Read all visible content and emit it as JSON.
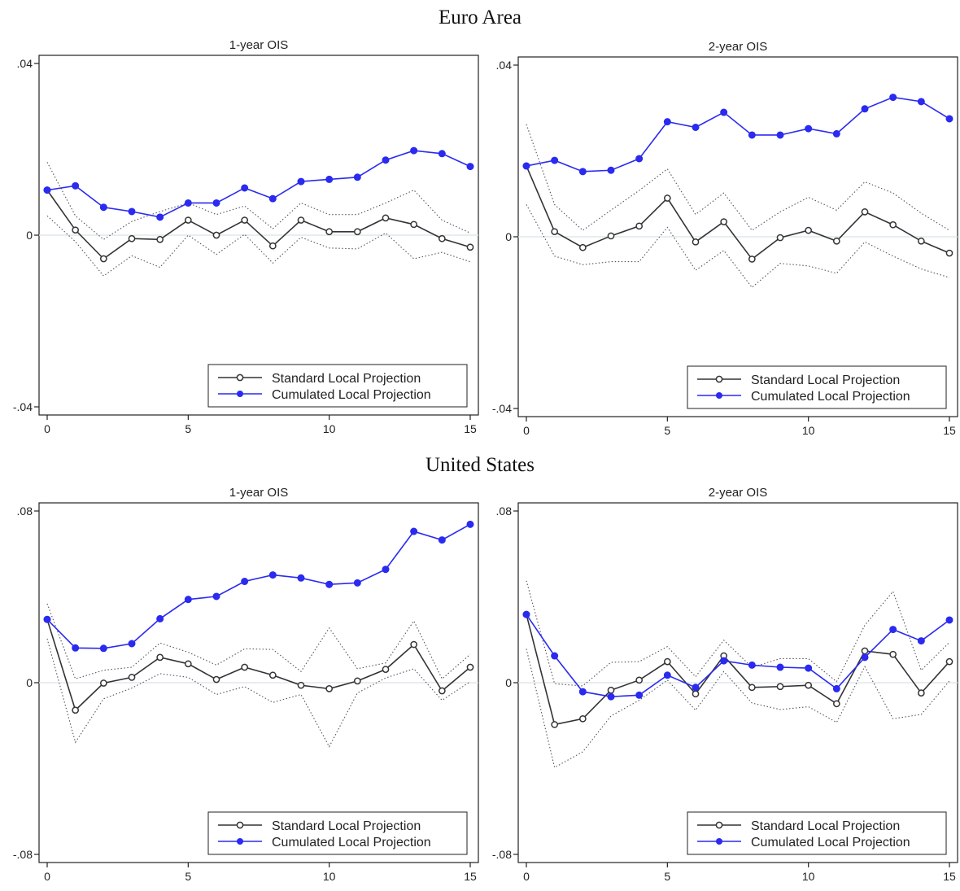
{
  "sections": [
    {
      "title": "Euro Area"
    },
    {
      "title": "United States"
    }
  ],
  "legend": {
    "standard": "Standard Local Projection",
    "cumulated": "Cumulated Local Projection"
  },
  "colors": {
    "standard": "#333333",
    "cumulated": "#2a2af0",
    "band": "#555555",
    "zero_line": "#dde8ec"
  },
  "chart_data": [
    {
      "type": "line",
      "section": "Euro Area",
      "title": "1-year OIS",
      "x": [
        0,
        1,
        2,
        3,
        4,
        5,
        6,
        7,
        8,
        9,
        10,
        11,
        12,
        13,
        14,
        15
      ],
      "ylim": [
        -0.04,
        0.04
      ],
      "yticks": [
        ".04",
        "0",
        "-.04"
      ],
      "xticks": [
        "0",
        "5",
        "10",
        "15"
      ],
      "series": [
        {
          "name": "Standard Local Projection",
          "values": [
            0.0105,
            0.0012,
            -0.0055,
            -0.0008,
            -0.001,
            0.0035,
            0.0,
            0.0035,
            -0.0025,
            0.0035,
            0.0008,
            0.0008,
            0.004,
            0.0025,
            -0.0008,
            -0.0028
          ]
        },
        {
          "name": "Cumulated Local Projection",
          "values": [
            0.0105,
            0.0115,
            0.0065,
            0.0055,
            0.0042,
            0.0075,
            0.0075,
            0.011,
            0.0085,
            0.0125,
            0.013,
            0.0135,
            0.0175,
            0.0197,
            0.019,
            0.016
          ]
        }
      ],
      "band_upper": [
        0.017,
        0.0045,
        -0.001,
        0.0032,
        0.0055,
        0.0075,
        0.0048,
        0.0068,
        0.0015,
        0.0075,
        0.0048,
        0.0048,
        0.0075,
        0.0105,
        0.0035,
        0.0005
      ],
      "band_lower": [
        0.0045,
        -0.0015,
        -0.0095,
        -0.0048,
        -0.0075,
        0.0,
        -0.0045,
        0.0002,
        -0.0065,
        -0.0005,
        -0.003,
        -0.0032,
        0.0005,
        -0.0055,
        -0.004,
        -0.0062
      ]
    },
    {
      "type": "line",
      "section": "Euro Area",
      "title": "2-year OIS",
      "x": [
        0,
        1,
        2,
        3,
        4,
        5,
        6,
        7,
        8,
        9,
        10,
        11,
        12,
        13,
        14,
        15
      ],
      "ylim": [
        -0.04,
        0.04
      ],
      "yticks": [
        ".04",
        "0",
        "-.04"
      ],
      "xticks": [
        "0",
        "5",
        "10",
        "15"
      ],
      "series": [
        {
          "name": "Standard Local Projection",
          "values": [
            0.0165,
            0.0012,
            -0.0025,
            0.0002,
            0.0025,
            0.009,
            -0.0012,
            0.0035,
            -0.0052,
            -0.0002,
            0.0015,
            -0.001,
            0.0058,
            0.0028,
            -0.001,
            -0.0038
          ]
        },
        {
          "name": "Cumulated Local Projection",
          "values": [
            0.0165,
            0.0178,
            0.0152,
            0.0155,
            0.0182,
            0.0268,
            0.0255,
            0.029,
            0.0237,
            0.0237,
            0.0252,
            0.024,
            0.0298,
            0.0325,
            0.0315,
            0.0275
          ]
        }
      ],
      "band_upper": [
        0.0262,
        0.0075,
        0.0015,
        0.0062,
        0.0108,
        0.0158,
        0.0052,
        0.0102,
        0.0015,
        0.0058,
        0.0092,
        0.0062,
        0.0128,
        0.0102,
        0.0055,
        0.0015
      ],
      "band_lower": [
        0.0075,
        -0.0045,
        -0.0065,
        -0.0058,
        -0.0058,
        0.0022,
        -0.0078,
        -0.0032,
        -0.0118,
        -0.0062,
        -0.0068,
        -0.0085,
        -0.0012,
        -0.0045,
        -0.0075,
        -0.0095
      ]
    },
    {
      "type": "line",
      "section": "United States",
      "title": "1-year OIS",
      "x": [
        0,
        1,
        2,
        3,
        4,
        5,
        6,
        7,
        8,
        9,
        10,
        11,
        12,
        13,
        14,
        15
      ],
      "ylim": [
        -0.08,
        0.08
      ],
      "yticks": [
        ".08",
        "0",
        "-.08"
      ],
      "xticks": [
        "0",
        "5",
        "10",
        "15"
      ],
      "series": [
        {
          "name": "Standard Local Projection",
          "values": [
            0.0295,
            -0.0128,
            -0.0002,
            0.0025,
            0.0118,
            0.0088,
            0.0015,
            0.0072,
            0.0035,
            -0.0012,
            -0.0028,
            0.0008,
            0.0062,
            0.0178,
            -0.0038,
            0.0072
          ]
        },
        {
          "name": "Cumulated Local Projection",
          "values": [
            0.0295,
            0.0162,
            0.016,
            0.0182,
            0.0298,
            0.0388,
            0.0402,
            0.0472,
            0.0502,
            0.0488,
            0.0458,
            0.0465,
            0.0528,
            0.0705,
            0.0665,
            0.0738
          ]
        }
      ],
      "band_upper": [
        0.0368,
        0.0018,
        0.0058,
        0.0072,
        0.0185,
        0.0142,
        0.0082,
        0.0158,
        0.0155,
        0.0052,
        0.0255,
        0.0065,
        0.0092,
        0.0288,
        0.0018,
        0.0132
      ],
      "band_lower": [
        0.0205,
        -0.0278,
        -0.0075,
        -0.0025,
        0.0042,
        0.0025,
        -0.0055,
        -0.0018,
        -0.0092,
        -0.0055,
        -0.0298,
        -0.0048,
        0.0022,
        0.0065,
        -0.0082,
        0.0005
      ]
    },
    {
      "type": "line",
      "section": "United States",
      "title": "2-year OIS",
      "x": [
        0,
        1,
        2,
        3,
        4,
        5,
        6,
        7,
        8,
        9,
        10,
        11,
        12,
        13,
        14,
        15
      ],
      "ylim": [
        -0.08,
        0.08
      ],
      "yticks": [
        ".08",
        "0",
        "-.08"
      ],
      "xticks": [
        "0",
        "5",
        "10",
        "15"
      ],
      "series": [
        {
          "name": "Standard Local Projection",
          "values": [
            0.0318,
            -0.0195,
            -0.0168,
            -0.0035,
            0.0012,
            0.0098,
            -0.0052,
            0.0125,
            -0.0022,
            -0.0018,
            -0.0012,
            -0.0098,
            0.0148,
            0.0132,
            -0.0048,
            0.0098
          ]
        },
        {
          "name": "Cumulated Local Projection",
          "values": [
            0.0318,
            0.0125,
            -0.0042,
            -0.0065,
            -0.0058,
            0.0035,
            -0.0022,
            0.0102,
            0.0082,
            0.0072,
            0.0068,
            -0.0028,
            0.0118,
            0.0248,
            0.0195,
            0.0292
          ]
        }
      ],
      "band_upper": [
        0.0475,
        -0.0005,
        -0.0015,
        0.0095,
        0.0098,
        0.0168,
        0.0028,
        0.0198,
        0.0072,
        0.0112,
        0.0112,
        0.0005,
        0.0268,
        0.0425,
        0.0058,
        0.0188
      ],
      "band_lower": [
        0.0158,
        -0.0395,
        -0.0322,
        -0.0155,
        -0.0082,
        0.0012,
        -0.0128,
        0.0052,
        -0.0095,
        -0.0125,
        -0.0112,
        -0.0185,
        0.0075,
        -0.0168,
        -0.0148,
        0.0008
      ]
    }
  ]
}
